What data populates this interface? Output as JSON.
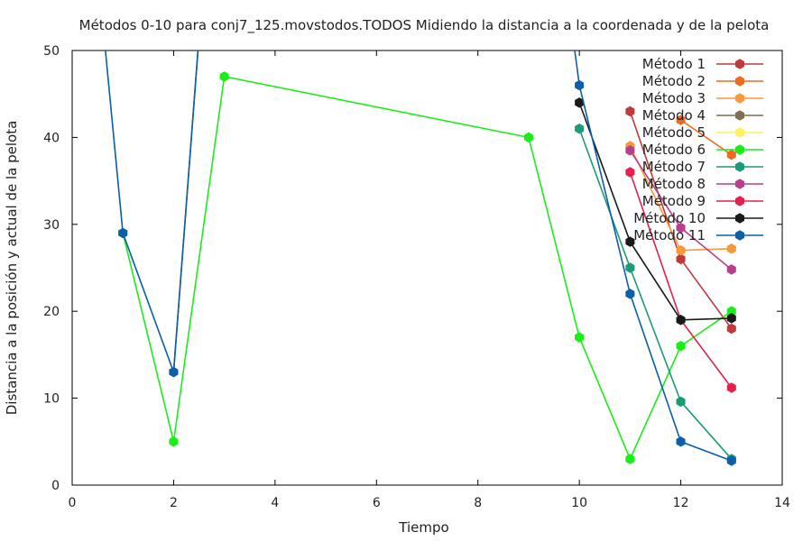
{
  "chart_data": {
    "type": "line",
    "title": "Métodos 0-10 para conj7_125.movstodos.TODOS Midiendo la distancia a la coordenada y de la pelota",
    "xlabel": "Tiempo",
    "ylabel": "Distancia a la posición y actual de la pelota",
    "xlim": [
      0,
      14
    ],
    "ylim": [
      0,
      50
    ],
    "xticks": [
      "0",
      "2",
      "4",
      "6",
      "8",
      "10",
      "12",
      "14"
    ],
    "yticks": [
      "0",
      "10",
      "20",
      "30",
      "40",
      "50"
    ],
    "grid": false,
    "legend_position": "top-right",
    "series": [
      {
        "name": "Método 1",
        "color": "#c0393b",
        "x": [
          11,
          12,
          13
        ],
        "y": [
          43,
          26,
          18
        ]
      },
      {
        "name": "Método 2",
        "color": "#ee6a1f",
        "x": [
          12,
          13
        ],
        "y": [
          42,
          38
        ]
      },
      {
        "name": "Método 3",
        "color": "#f7993a",
        "x": [
          11,
          12,
          13
        ],
        "y": [
          39,
          27,
          27.2
        ]
      },
      {
        "name": "Método 4",
        "color": "#7f6e54",
        "x": [
          2,
          3
        ],
        "y": [
          13,
          90
        ]
      },
      {
        "name": "Método 5",
        "color": "#fff25a",
        "x": [],
        "y": []
      },
      {
        "name": "Método 6",
        "color": "#19ee19",
        "x": [
          1,
          2,
          3,
          9,
          10,
          11,
          12,
          13
        ],
        "y": [
          29,
          5,
          47,
          40,
          17,
          3,
          16,
          20
        ]
      },
      {
        "name": "Método 7",
        "color": "#1d9a76",
        "x": [
          10,
          11,
          12,
          13
        ],
        "y": [
          41,
          25,
          9.6,
          3
        ]
      },
      {
        "name": "Método 8",
        "color": "#b73f8c",
        "x": [
          11,
          12,
          13
        ],
        "y": [
          38.5,
          29.6,
          24.8
        ]
      },
      {
        "name": "Método 9",
        "color": "#e6204d",
        "x": [
          11,
          12,
          13
        ],
        "y": [
          36,
          19,
          11.2
        ]
      },
      {
        "name": "Método 10",
        "color": "#1a1a1a",
        "x": [
          10,
          11,
          12,
          13
        ],
        "y": [
          44,
          28,
          19,
          19.2
        ]
      },
      {
        "name": "Método 11",
        "color": "#0a5fa8",
        "x": [
          0,
          1,
          2,
          3,
          9,
          10,
          11,
          12,
          13
        ],
        "y": [
          90,
          29,
          13,
          90,
          90,
          46,
          22,
          5,
          2.8
        ]
      }
    ]
  }
}
